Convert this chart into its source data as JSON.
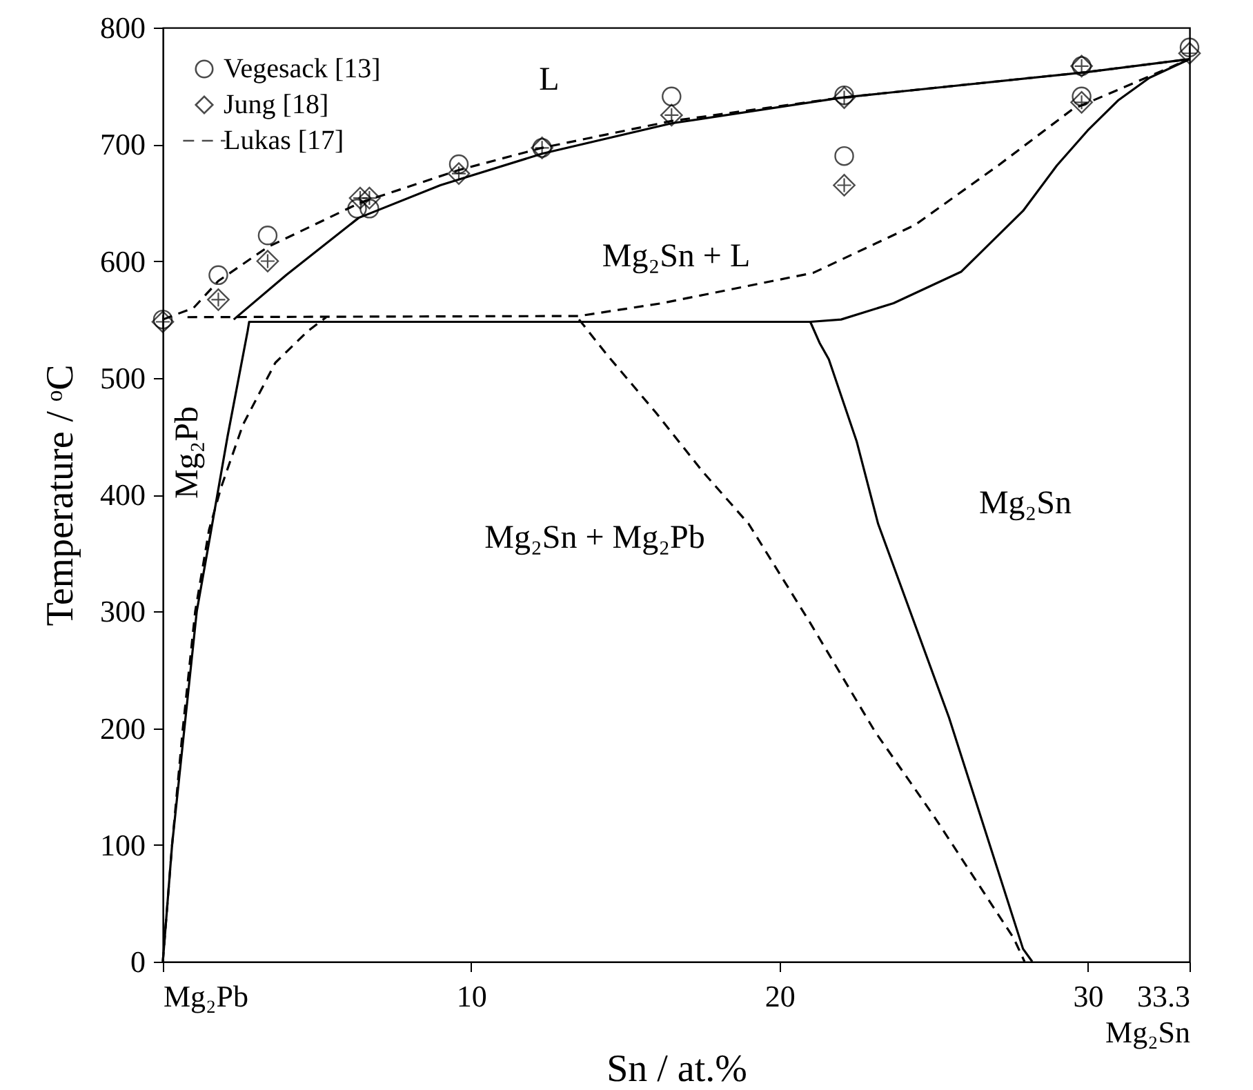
{
  "chart_data": {
    "type": "line",
    "xlabel": "Sn / at.%",
    "ylabel": "Temperature / ᵒC",
    "xlim": [
      0,
      33.3
    ],
    "ylim": [
      0,
      800
    ],
    "xticks": [
      {
        "value": 0,
        "label": "Mg₂Pb"
      },
      10,
      20,
      30,
      {
        "value": 33.3,
        "label": "33.3\nMg₂Sn"
      }
    ],
    "yticks": [
      0,
      100,
      200,
      300,
      400,
      500,
      600,
      700,
      800
    ],
    "legend": "top left",
    "annotations": [
      "L",
      "Mg₂Sn + L",
      "Mg₂Pb",
      "Mg₂Sn + Mg₂Pb",
      "Mg₂Sn"
    ],
    "series": [
      {
        "name": "Vegesack [13]",
        "type": "scatter",
        "marker": "circle",
        "color": "#000000",
        "x": [
          0,
          1.8,
          3.4,
          6.3,
          6.7,
          9.6,
          12.3,
          16.5,
          22.1,
          22.1,
          29.8,
          29.8,
          33.3
        ],
        "values": [
          550,
          588,
          622,
          645,
          645,
          683,
          697,
          741,
          742,
          690,
          767,
          741,
          783
        ]
      },
      {
        "name": "Jung [18]",
        "type": "scatter",
        "marker": "diamond",
        "color": "#000000",
        "x": [
          0,
          1.8,
          3.4,
          6.4,
          6.7,
          9.6,
          12.3,
          16.5,
          22.1,
          22.1,
          29.8,
          29.8,
          33.3
        ],
        "values": [
          548,
          567,
          600,
          654,
          654,
          675,
          697,
          725,
          740,
          665,
          767,
          736,
          778
        ]
      },
      {
        "name": "Lukas [17]",
        "line_style": "dashed",
        "color": "#000000",
        "x": [
          0,
          1,
          1.8,
          3.4,
          6.4,
          9.6,
          12.3,
          16.5,
          22,
          30,
          33.3
        ],
        "values": [
          550,
          560,
          583,
          612,
          650,
          678,
          697,
          720,
          740,
          762,
          773
        ]
      },
      {
        "line_style": "dashed",
        "color": "#000000",
        "x": [
          0,
          0.3,
          0.65,
          1.05,
          1.5,
          1.9,
          2.6,
          3.65,
          4.7,
          5.3
        ],
        "values": [
          0,
          100,
          200,
          300,
          370,
          407,
          460,
          513,
          540,
          552
        ]
      },
      {
        "line_style": "dashed",
        "color": "#000000",
        "x": [
          0.8,
          13.5,
          16.2,
          21.1,
          24.4,
          27.1,
          29.5,
          33.3
        ],
        "values": [
          552,
          553,
          564,
          590,
          631,
          682,
          730,
          773
        ]
      },
      {
        "line_style": "dashed",
        "color": "#000000",
        "x": [
          13.5,
          14.4,
          16,
          17.5,
          19,
          21,
          23.1,
          25,
          27.6,
          27.95
        ],
        "values": [
          550,
          520,
          470,
          420,
          375,
          290,
          197,
          125,
          20,
          0
        ]
      },
      {
        "line_style": "solid",
        "color": "#000000",
        "x": [
          2.3,
          4,
          6.35,
          9,
          12.3,
          16.5,
          22,
          30,
          33.3
        ],
        "values": [
          550,
          588,
          637,
          665,
          692,
          718,
          740,
          762,
          773
        ]
      },
      {
        "line_style": "solid",
        "color": "#000000",
        "x": [
          0,
          0.3,
          0.7,
          1.1,
          1.55,
          2.1,
          2.75,
          2.8,
          21,
          21.3,
          21.6,
          22.5,
          23.2,
          25.5,
          27.9,
          28.2
        ],
        "values": [
          0,
          100,
          200,
          300,
          367,
          450,
          540,
          548,
          548,
          530,
          516,
          446,
          375,
          209,
          11,
          0
        ]
      },
      {
        "line_style": "solid",
        "color": "#000000",
        "x": [
          21,
          22,
          23.7,
          25.9,
          27.9,
          29,
          30,
          31,
          32,
          33.3
        ],
        "values": [
          548,
          550,
          564,
          591,
          643,
          682,
          712,
          738,
          757,
          773
        ]
      }
    ]
  }
}
